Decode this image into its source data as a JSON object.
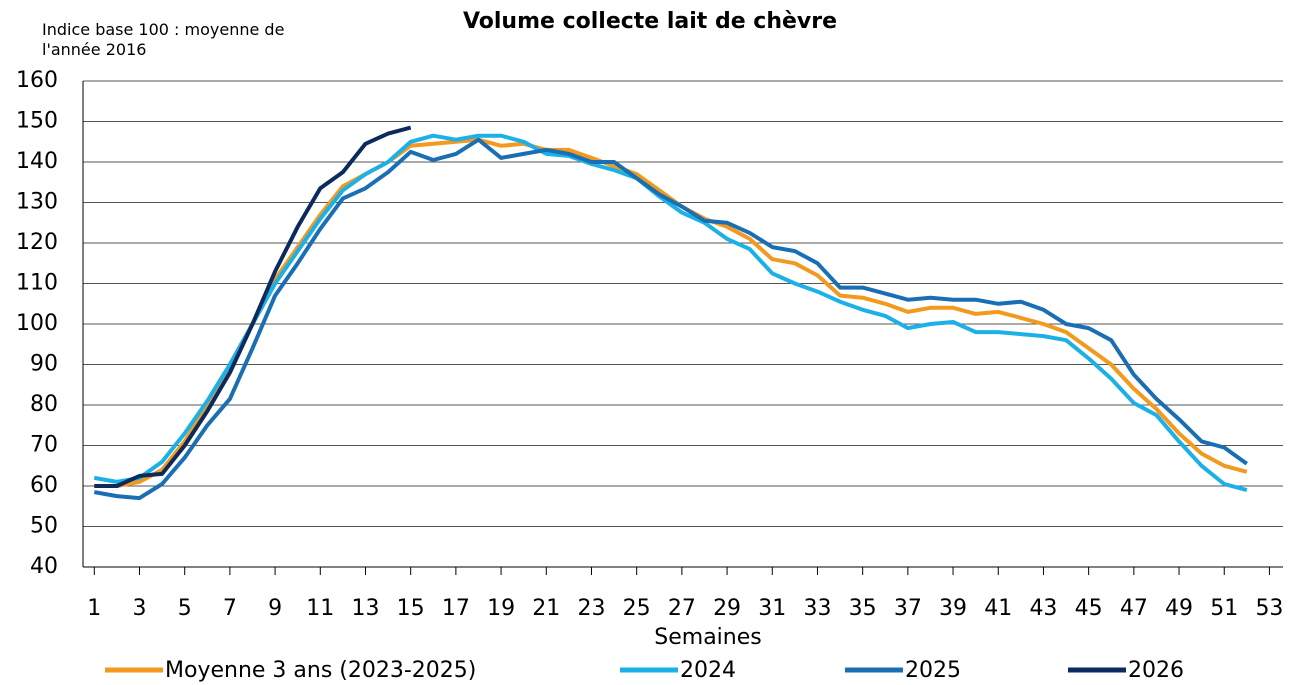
{
  "chart_data": {
    "type": "line",
    "title": "Volume collecte lait de chèvre",
    "y_label": "Indice base 100 : moyenne de l'année 2016",
    "x_label": "Semaines",
    "x": [
      1,
      2,
      3,
      4,
      5,
      6,
      7,
      8,
      9,
      10,
      11,
      12,
      13,
      14,
      15,
      16,
      17,
      18,
      19,
      20,
      21,
      22,
      23,
      24,
      25,
      26,
      27,
      28,
      29,
      30,
      31,
      32,
      33,
      34,
      35,
      36,
      37,
      38,
      39,
      40,
      41,
      42,
      43,
      44,
      45,
      46,
      47,
      48,
      49,
      50,
      51,
      52
    ],
    "xlim": [
      0.5,
      53.6
    ],
    "xticks": [
      1,
      3,
      5,
      7,
      9,
      11,
      13,
      15,
      17,
      19,
      21,
      23,
      25,
      27,
      29,
      31,
      33,
      35,
      37,
      39,
      41,
      43,
      45,
      47,
      49,
      51,
      53
    ],
    "ylim": [
      40,
      160
    ],
    "yticks": [
      40,
      50,
      60,
      70,
      80,
      90,
      100,
      110,
      120,
      130,
      140,
      150,
      160
    ],
    "grid": true,
    "legend": "bottom",
    "series": [
      {
        "name": "Moyenne 3 ans (2023-2025)",
        "color": "#f39a1e",
        "values": [
          60,
          60,
          61,
          64,
          71,
          80,
          90,
          100,
          111,
          119,
          127,
          134,
          137,
          140,
          144,
          144.5,
          145,
          145.5,
          144,
          144.5,
          143,
          143,
          141,
          139,
          137,
          133,
          129,
          126,
          124,
          121,
          116,
          115,
          112,
          107,
          106.5,
          105,
          103,
          104,
          104,
          102.5,
          103,
          101.5,
          100,
          98,
          94,
          90,
          84,
          79,
          73,
          68,
          65,
          63.5
        ]
      },
      {
        "name": "2024",
        "color": "#1cb0e8",
        "values": [
          62,
          61,
          62,
          66,
          73,
          81,
          90,
          100,
          110,
          118,
          126,
          133,
          137,
          140,
          145,
          146.5,
          145.5,
          146.5,
          146.5,
          145,
          142,
          141.5,
          139.5,
          138,
          136,
          131.5,
          127.5,
          125,
          121,
          118.5,
          112.5,
          110,
          108,
          105.5,
          103.5,
          102,
          99,
          100,
          100.5,
          98,
          98,
          97.5,
          97,
          96,
          91.5,
          86.5,
          80.5,
          77.5,
          71,
          65,
          60.5,
          59
        ]
      },
      {
        "name": "2025",
        "color": "#1a6fb4",
        "values": [
          58.5,
          57.5,
          57,
          60.5,
          67,
          75,
          81.5,
          94,
          107,
          115,
          123.5,
          131,
          133.5,
          137.5,
          142.5,
          140.5,
          142,
          145.5,
          141,
          142,
          143,
          142,
          140,
          140,
          136,
          132,
          129,
          125.5,
          125,
          122.5,
          119,
          118,
          115,
          109,
          109,
          107.5,
          106,
          106.5,
          106,
          106,
          105,
          105.5,
          103.5,
          100,
          99,
          96,
          87.5,
          81.5,
          76.5,
          71,
          69.5,
          65.5
        ]
      },
      {
        "name": "2026",
        "color": "#0c2a5e",
        "values": [
          60,
          60,
          62.5,
          63,
          70,
          78.5,
          88,
          100,
          113,
          124,
          133.5,
          137.5,
          144.5,
          147,
          148.5,
          null,
          null,
          null,
          null,
          null,
          null,
          null,
          null,
          null,
          null,
          null,
          null,
          null,
          null,
          null,
          null,
          null,
          null,
          null,
          null,
          null,
          null,
          null,
          null,
          null,
          null,
          null,
          null,
          null,
          null,
          null,
          null,
          null,
          null,
          null,
          null,
          null
        ]
      }
    ]
  }
}
